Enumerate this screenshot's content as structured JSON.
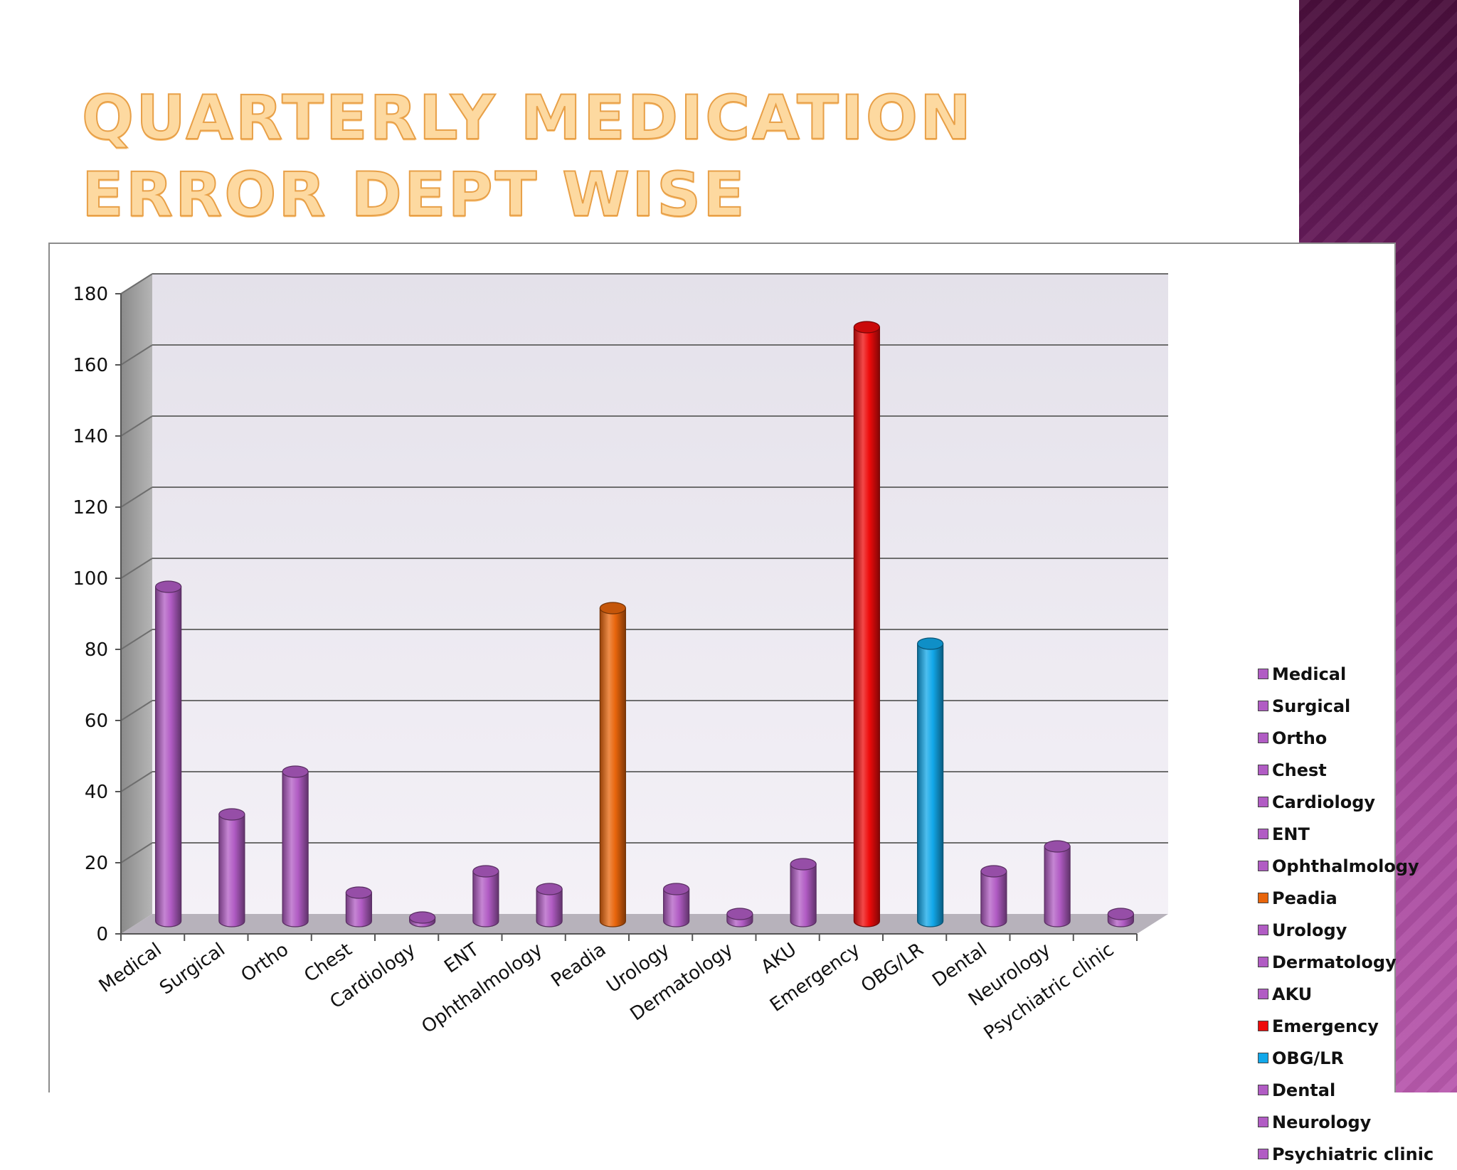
{
  "slide": {
    "title": "Quarterly Medication Error Dept wise"
  },
  "colors": {
    "default_bar": "#b15cc4",
    "peadia_bar": "#e8650c",
    "emergency_bar": "#ee0b0b",
    "obg_bar": "#12a8ea",
    "title_fill": "#fdd9a0",
    "title_stroke": "#e8a048",
    "side_band": "#7a2470"
  },
  "chart_data": {
    "type": "bar",
    "title": "",
    "xlabel": "",
    "ylabel": "",
    "ylim": [
      0,
      180
    ],
    "yticks": [
      0,
      20,
      40,
      60,
      80,
      100,
      120,
      140,
      160,
      180
    ],
    "grid": true,
    "legend_position": "right",
    "categories": [
      "Medical",
      "Surgical",
      "Ortho",
      "Chest",
      "Cardiology",
      "ENT",
      "Ophthalmology",
      "Peadia",
      "Urology",
      "Dermatology",
      "AKU",
      "Emergency",
      "OBG/LR",
      "Dental",
      "Neurology",
      "Psychiatric clinic"
    ],
    "values": [
      94,
      30,
      42,
      8,
      1,
      14,
      9,
      88,
      9,
      2,
      16,
      167,
      78,
      14,
      21,
      2
    ],
    "bar_colors": [
      "#b15cc4",
      "#b15cc4",
      "#b15cc4",
      "#b15cc4",
      "#b15cc4",
      "#b15cc4",
      "#b15cc4",
      "#e8650c",
      "#b15cc4",
      "#b15cc4",
      "#b15cc4",
      "#ee0b0b",
      "#12a8ea",
      "#b15cc4",
      "#b15cc4",
      "#b15cc4"
    ]
  }
}
